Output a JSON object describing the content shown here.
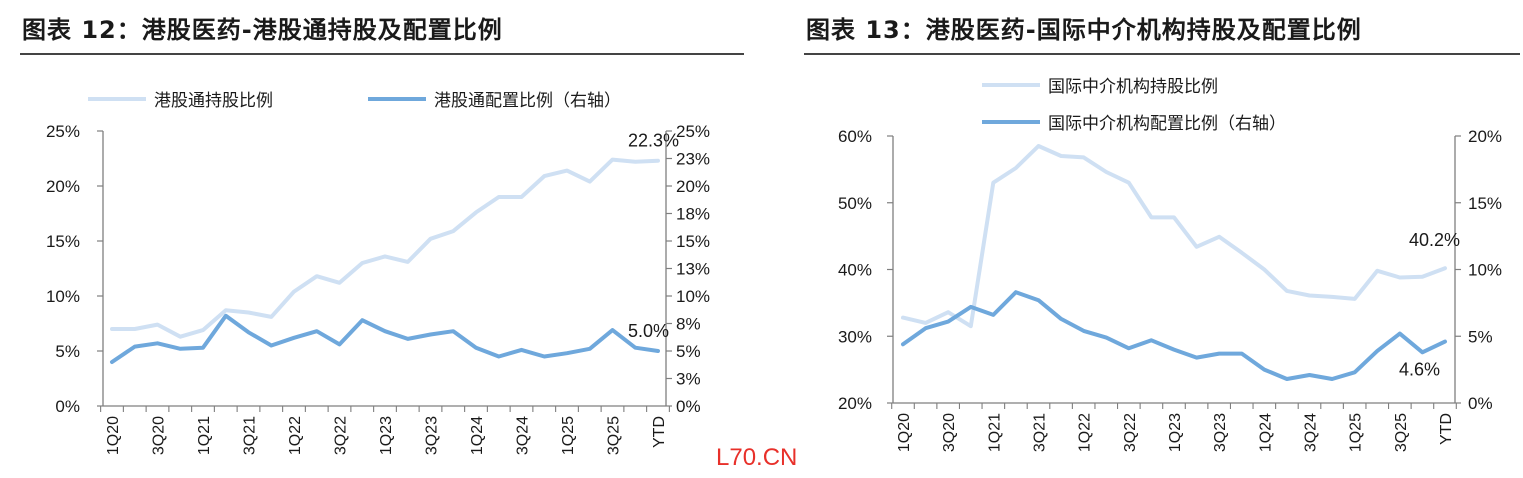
{
  "charts": [
    {
      "title": "图表 12：港股医药-港股通持股及配置比例",
      "chart_data": {
        "type": "line",
        "title": "图表 12：港股医药-港股通持股及配置比例",
        "categories": [
          "1Q20",
          "2Q20",
          "3Q20",
          "4Q20",
          "1Q21",
          "2Q21",
          "3Q21",
          "4Q21",
          "1Q22",
          "2Q22",
          "3Q22",
          "4Q22",
          "1Q23",
          "2Q23",
          "3Q23",
          "4Q23",
          "1Q24",
          "2Q24",
          "3Q24",
          "4Q24",
          "1Q25",
          "2Q25",
          "3Q25",
          "4Q25",
          "YTD"
        ],
        "x_tick_labels": [
          "1Q20",
          "",
          "3Q20",
          "",
          "1Q21",
          "",
          "3Q21",
          "",
          "1Q22",
          "",
          "3Q22",
          "",
          "1Q23",
          "",
          "3Q23",
          "",
          "1Q24",
          "",
          "3Q24",
          "",
          "1Q25",
          "",
          "3Q25",
          "",
          "YTD"
        ],
        "series": [
          {
            "name": "港股通持股比例",
            "axis": "left",
            "color": "#cfe0f3",
            "values": [
              7.0,
              7.0,
              7.4,
              6.3,
              6.9,
              8.7,
              8.5,
              8.1,
              10.4,
              11.8,
              11.2,
              13.0,
              13.6,
              13.1,
              15.2,
              15.9,
              17.6,
              19.0,
              19.0,
              20.9,
              21.4,
              20.4,
              22.4,
              22.2,
              22.3
            ]
          },
          {
            "name": "港股通配置比例（右轴）",
            "axis": "right",
            "color": "#6fa8dc",
            "values": [
              4.0,
              5.4,
              5.7,
              5.2,
              5.3,
              8.2,
              6.7,
              5.5,
              6.2,
              6.8,
              5.6,
              7.8,
              6.8,
              6.1,
              6.5,
              6.8,
              5.3,
              4.5,
              5.1,
              4.5,
              4.8,
              5.2,
              6.9,
              5.3,
              5.0
            ]
          }
        ],
        "left_axis": {
          "ylim": [
            0,
            25
          ],
          "ticks": [
            "0%",
            "5%",
            "10%",
            "15%",
            "20%",
            "25%"
          ],
          "tick_values": [
            0,
            5,
            10,
            15,
            20,
            25
          ]
        },
        "right_axis": {
          "ylim": [
            0,
            25
          ],
          "ticks": [
            "0%",
            "3%",
            "5%",
            "8%",
            "10%",
            "13%",
            "15%",
            "18%",
            "20%",
            "23%",
            "25%"
          ],
          "tick_values": [
            0,
            2.5,
            5,
            7.5,
            10,
            12.5,
            15,
            17.5,
            20,
            22.5,
            25
          ]
        },
        "annotations": [
          {
            "text": "22.3%",
            "series": 0,
            "index": 24
          },
          {
            "text": "5.0%",
            "series": 1,
            "index": 24
          }
        ],
        "grid": false,
        "legend": "top"
      }
    },
    {
      "title": "图表 13：港股医药-国际中介机构持股及配置比例",
      "chart_data": {
        "type": "line",
        "title": "图表 13：港股医药-国际中介机构持股及配置比例",
        "categories": [
          "1Q20",
          "2Q20",
          "3Q20",
          "4Q20",
          "1Q21",
          "2Q21",
          "3Q21",
          "4Q21",
          "1Q22",
          "2Q22",
          "3Q22",
          "4Q22",
          "1Q23",
          "2Q23",
          "3Q23",
          "4Q23",
          "1Q24",
          "2Q24",
          "3Q24",
          "4Q24",
          "1Q25",
          "2Q25",
          "3Q25",
          "4Q25",
          "YTD"
        ],
        "x_tick_labels": [
          "1Q20",
          "",
          "3Q20",
          "",
          "1Q21",
          "",
          "3Q21",
          "",
          "1Q22",
          "",
          "3Q22",
          "",
          "1Q23",
          "",
          "3Q23",
          "",
          "1Q24",
          "",
          "3Q24",
          "",
          "1Q25",
          "",
          "3Q25",
          "",
          "YTD"
        ],
        "series": [
          {
            "name": "国际中介机构持股比例",
            "axis": "left",
            "color": "#cfe0f3",
            "values": [
              32.8,
              32.0,
              33.6,
              31.5,
              53.0,
              55.2,
              58.5,
              57.0,
              56.8,
              54.6,
              53.0,
              47.8,
              47.8,
              43.4,
              44.9,
              42.5,
              40.0,
              36.8,
              36.1,
              35.9,
              35.6,
              39.8,
              38.8,
              38.9,
              40.2
            ]
          },
          {
            "name": "国际中介机构配置比例（右轴）",
            "axis": "right",
            "color": "#6fa8dc",
            "values": [
              4.4,
              5.6,
              6.1,
              7.2,
              6.6,
              8.3,
              7.7,
              6.3,
              5.4,
              4.9,
              4.1,
              4.7,
              4.0,
              3.4,
              3.7,
              3.7,
              2.5,
              1.8,
              2.1,
              1.8,
              2.3,
              3.9,
              5.2,
              3.8,
              4.6
            ]
          }
        ],
        "left_axis": {
          "ylim": [
            20,
            60
          ],
          "ticks": [
            "20%",
            "30%",
            "40%",
            "50%",
            "60%"
          ],
          "tick_values": [
            20,
            30,
            40,
            50,
            60
          ]
        },
        "right_axis": {
          "ylim": [
            0,
            20
          ],
          "ticks": [
            "0%",
            "5%",
            "10%",
            "15%",
            "20%"
          ],
          "tick_values": [
            0,
            5,
            10,
            15,
            20
          ]
        },
        "annotations": [
          {
            "text": "40.2%",
            "series": 0,
            "index": 24
          },
          {
            "text": "4.6%",
            "series": 1,
            "index": 24
          }
        ],
        "grid": false,
        "legend": "top"
      }
    }
  ],
  "watermark": "L70.CN"
}
